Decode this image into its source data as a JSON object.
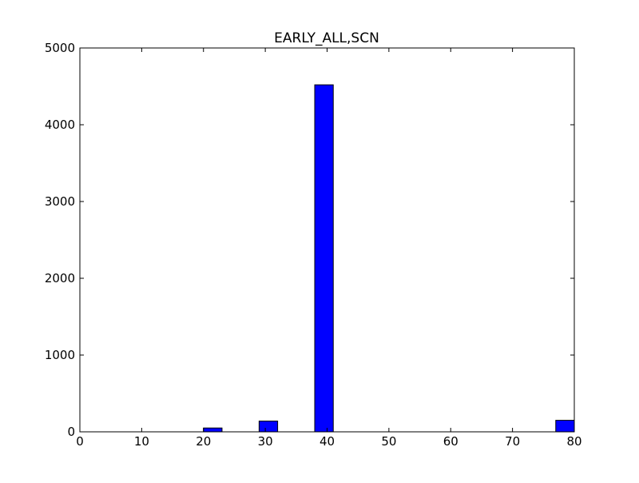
{
  "chart_data": {
    "type": "bar",
    "title": "EARLY_ALL,SCN",
    "xlabel": "",
    "ylabel": "",
    "xlim": [
      0,
      80
    ],
    "ylim": [
      0,
      5000
    ],
    "xticks": [
      0,
      10,
      20,
      30,
      40,
      50,
      60,
      70,
      80
    ],
    "yticks": [
      0,
      1000,
      2000,
      3000,
      4000,
      5000
    ],
    "bin_width": 3.0,
    "bars": [
      {
        "x": 20.0,
        "value": 50
      },
      {
        "x": 29.0,
        "value": 140
      },
      {
        "x": 38.0,
        "value": 4520
      },
      {
        "x": 77.0,
        "value": 150
      }
    ],
    "bar_color": "#0000ff",
    "edge_color": "#000000",
    "grid": false,
    "legend": "none"
  }
}
